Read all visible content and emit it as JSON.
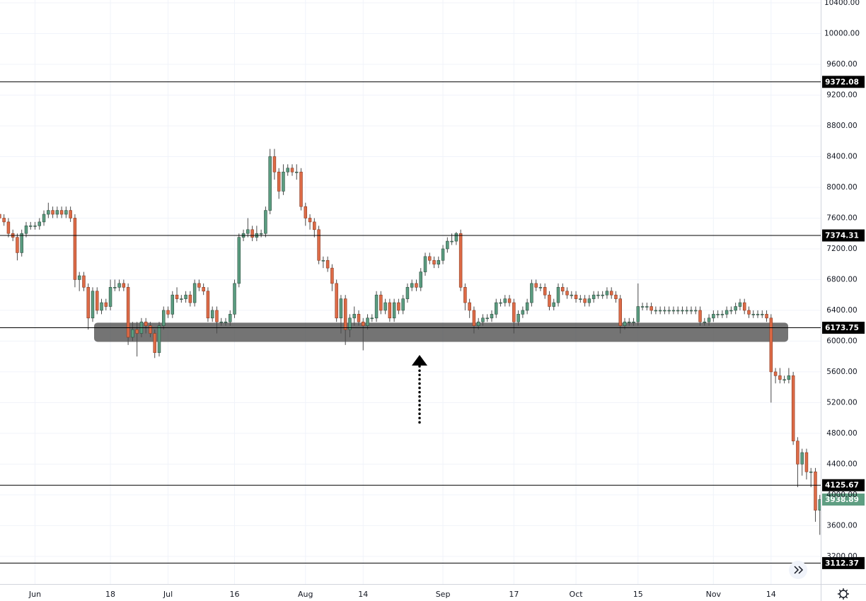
{
  "chart_data": {
    "type": "candlestick",
    "up_color": "#5a9c80",
    "down_color": "#dd6b47",
    "level_color": "#000000",
    "zone_color": "#4d4d4d",
    "last_color": "#5f9e82",
    "grid": true,
    "xlim": [
      0.1,
      185.2
    ],
    "ylim": [
      2840,
      10437
    ],
    "zone": [
      5990,
      6240
    ],
    "xticks": [
      {
        "value": 8,
        "label": "Jun"
      },
      {
        "value": 25,
        "label": "18"
      },
      {
        "value": 38,
        "label": "Jul"
      },
      {
        "value": 53,
        "label": "16"
      },
      {
        "value": 69,
        "label": "Aug"
      },
      {
        "value": 82,
        "label": "14"
      },
      {
        "value": 100,
        "label": "Sep"
      },
      {
        "value": 116,
        "label": "17"
      },
      {
        "value": 130,
        "label": "Oct"
      },
      {
        "value": 144,
        "label": "15"
      },
      {
        "value": 161,
        "label": "Nov"
      },
      {
        "value": 174,
        "label": "14"
      }
    ],
    "yticks": [
      {
        "value": 3200,
        "label": "3200.00"
      },
      {
        "value": 3600,
        "label": "3600.00"
      },
      {
        "value": 4000,
        "label": "4000.00"
      },
      {
        "value": 4400,
        "label": "4400.00"
      },
      {
        "value": 4800,
        "label": "4800.00"
      },
      {
        "value": 5200,
        "label": "5200.00"
      },
      {
        "value": 5600,
        "label": "5600.00"
      },
      {
        "value": 6000,
        "label": "6000.00"
      },
      {
        "value": 6400,
        "label": "6400.00"
      },
      {
        "value": 6800,
        "label": "6800.00"
      },
      {
        "value": 7200,
        "label": "7200.00"
      },
      {
        "value": 7600,
        "label": "7600.00"
      },
      {
        "value": 8000,
        "label": "8000.00"
      },
      {
        "value": 8400,
        "label": "8400.00"
      },
      {
        "value": 8800,
        "label": "8800.00"
      },
      {
        "value": 9200,
        "label": "9200.00"
      },
      {
        "value": 9600,
        "label": "9600.00"
      },
      {
        "value": 10000,
        "label": "10000.00"
      },
      {
        "value": 10400,
        "label": "10400.00"
      }
    ],
    "levels": [
      9372.08,
      7374.31,
      6173.75,
      4125.67,
      3112.37
    ],
    "open": [
      7650,
      7600,
      7550,
      7400,
      7350,
      7150,
      7400,
      7500,
      7500,
      7500,
      7550,
      7650,
      7700,
      7650,
      7700,
      7650,
      7700,
      7600,
      6800,
      6850,
      6700,
      6300,
      6650,
      6400,
      6500,
      6450,
      6700,
      6700,
      6750,
      6700,
      6050,
      6150,
      6100,
      6250,
      6200,
      6100,
      5850,
      6200,
      6400,
      6350,
      6600,
      6550,
      6550,
      6600,
      6500,
      6750,
      6700,
      6650,
      6300,
      6400,
      6250,
      6250,
      6250,
      6350,
      6750,
      7350,
      7400,
      7450,
      7350,
      7400,
      7400,
      7700,
      8400,
      8200,
      7950,
      8200,
      8250,
      8200,
      8200,
      7750,
      7600,
      7550,
      7450,
      7050,
      7050,
      6950,
      6750,
      6300,
      6550,
      6150,
      6300,
      6350,
      6250,
      6200,
      6300,
      6300,
      6600,
      6400,
      6500,
      6300,
      6500,
      6400,
      6550,
      6700,
      6750,
      6700,
      6900,
      7100,
      7050,
      7000,
      7050,
      7200,
      7300,
      7300,
      7400,
      6700,
      6500,
      6400,
      6200,
      6250,
      6300,
      6300,
      6350,
      6500,
      6500,
      6550,
      6500,
      6250,
      6350,
      6400,
      6500,
      6750,
      6700,
      6700,
      6600,
      6450,
      6500,
      6700,
      6650,
      6600,
      6600,
      6550,
      6550,
      6500,
      6550,
      6600,
      6600,
      6600,
      6650,
      6600,
      6550,
      6200,
      6250,
      6250,
      6250,
      6450,
      6450,
      6450,
      6400,
      6400,
      6400,
      6400,
      6400,
      6400,
      6400,
      6400,
      6400,
      6400,
      6400,
      6250,
      6250,
      6300,
      6350,
      6350,
      6350,
      6400,
      6400,
      6450,
      6500,
      6400,
      6350,
      6350,
      6350,
      6350,
      6300,
      5600,
      5550,
      5500,
      5500,
      5550,
      4700,
      4400,
      4550,
      4300,
      4300,
      3800
    ],
    "high": [
      7700,
      7650,
      7600,
      7450,
      7400,
      7450,
      7550,
      7550,
      7550,
      7600,
      7700,
      7800,
      7750,
      7750,
      7750,
      7750,
      7750,
      7650,
      6900,
      6900,
      6750,
      6700,
      6700,
      6550,
      6550,
      6800,
      6800,
      6800,
      6800,
      6750,
      6250,
      6250,
      6300,
      6300,
      6250,
      6150,
      6250,
      6450,
      6450,
      6650,
      6700,
      6600,
      6650,
      6650,
      6800,
      6800,
      6750,
      6700,
      6450,
      6450,
      6300,
      6300,
      6400,
      6800,
      7400,
      7450,
      7600,
      7500,
      7500,
      7450,
      7750,
      8500,
      8500,
      8250,
      8300,
      8300,
      8300,
      8300,
      8250,
      7800,
      7650,
      7600,
      7500,
      7100,
      7100,
      7000,
      6800,
      6600,
      6600,
      6350,
      6450,
      6400,
      6300,
      6350,
      6350,
      6650,
      6650,
      6550,
      6550,
      6550,
      6550,
      6600,
      6750,
      6800,
      6800,
      6950,
      7150,
      7150,
      7100,
      7100,
      7250,
      7350,
      7400,
      7420,
      7450,
      6750,
      6550,
      6450,
      6300,
      6350,
      6350,
      6400,
      6550,
      6550,
      6600,
      6600,
      6550,
      6400,
      6450,
      6550,
      6800,
      6800,
      6750,
      6750,
      6650,
      6550,
      6750,
      6750,
      6700,
      6650,
      6650,
      6600,
      6600,
      6600,
      6650,
      6650,
      6650,
      6700,
      6700,
      6650,
      6600,
      6300,
      6300,
      6300,
      6750,
      6500,
      6500,
      6500,
      6450,
      6450,
      6450,
      6450,
      6450,
      6450,
      6450,
      6450,
      6450,
      6450,
      6450,
      6300,
      6350,
      6400,
      6400,
      6400,
      6450,
      6450,
      6500,
      6550,
      6550,
      6450,
      6400,
      6400,
      6400,
      6400,
      6350,
      5650,
      5650,
      5550,
      5650,
      5600,
      4750,
      4600,
      4600,
      4350,
      4350,
      4000
    ],
    "low": [
      7550,
      7500,
      7350,
      7300,
      7050,
      7100,
      7350,
      7450,
      7450,
      7450,
      7500,
      7600,
      7600,
      7600,
      7600,
      7600,
      7550,
      6700,
      6650,
      6650,
      6150,
      6250,
      6350,
      6350,
      6400,
      6400,
      6650,
      6650,
      6650,
      5950,
      6000,
      5800,
      6050,
      6100,
      6050,
      5780,
      5800,
      6150,
      6300,
      6300,
      6500,
      6500,
      6500,
      6450,
      6450,
      6650,
      6600,
      6250,
      6250,
      6100,
      6200,
      6200,
      6200,
      6300,
      6700,
      7300,
      7350,
      7300,
      7300,
      7350,
      7350,
      7650,
      8100,
      7850,
      7900,
      8150,
      8150,
      8100,
      7700,
      7500,
      7450,
      7350,
      7000,
      6950,
      6900,
      6650,
      6250,
      6100,
      5950,
      6050,
      6200,
      6200,
      5880,
      6150,
      6250,
      6250,
      6350,
      6350,
      6250,
      6250,
      6350,
      6350,
      6500,
      6650,
      6650,
      6650,
      6850,
      7000,
      6950,
      6950,
      7000,
      7150,
      7250,
      7250,
      6650,
      6400,
      6300,
      6100,
      6150,
      6200,
      6250,
      6250,
      6300,
      6450,
      6450,
      6450,
      6100,
      6200,
      6300,
      6350,
      6450,
      6650,
      6650,
      6550,
      6400,
      6400,
      6450,
      6600,
      6550,
      6550,
      6500,
      6500,
      6450,
      6450,
      6500,
      6550,
      6550,
      6550,
      6550,
      6500,
      6100,
      6150,
      6200,
      6200,
      6200,
      6400,
      6400,
      6350,
      6350,
      6350,
      6350,
      6350,
      6350,
      6350,
      6350,
      6350,
      6350,
      6350,
      6200,
      6200,
      6200,
      6250,
      6300,
      6300,
      6300,
      6350,
      6350,
      6400,
      6350,
      6300,
      6300,
      6300,
      6300,
      6250,
      5200,
      5450,
      5450,
      5450,
      5450,
      4650,
      4100,
      4250,
      4200,
      4100,
      3650,
      3480
    ],
    "close": [
      7600,
      7550,
      7400,
      7350,
      7150,
      7400,
      7500,
      7500,
      7500,
      7550,
      7650,
      7700,
      7650,
      7700,
      7650,
      7700,
      7600,
      6800,
      6850,
      6700,
      6300,
      6650,
      6400,
      6500,
      6450,
      6700,
      6700,
      6750,
      6700,
      6050,
      6150,
      6100,
      6250,
      6200,
      6100,
      5850,
      6200,
      6400,
      6350,
      6600,
      6550,
      6550,
      6600,
      6500,
      6750,
      6700,
      6650,
      6300,
      6400,
      6250,
      6250,
      6250,
      6350,
      6750,
      7350,
      7400,
      7450,
      7350,
      7400,
      7400,
      7700,
      8400,
      8200,
      7950,
      8200,
      8250,
      8200,
      8200,
      7750,
      7600,
      7550,
      7450,
      7050,
      7050,
      6950,
      6750,
      6300,
      6550,
      6150,
      6300,
      6350,
      6250,
      6200,
      6300,
      6300,
      6600,
      6400,
      6500,
      6300,
      6500,
      6400,
      6550,
      6700,
      6750,
      6700,
      6900,
      7100,
      7050,
      7000,
      7050,
      7200,
      7300,
      7300,
      7400,
      6700,
      6500,
      6400,
      6200,
      6250,
      6300,
      6300,
      6350,
      6500,
      6500,
      6550,
      6500,
      6250,
      6350,
      6400,
      6500,
      6750,
      6700,
      6700,
      6600,
      6450,
      6500,
      6700,
      6650,
      6600,
      6600,
      6550,
      6550,
      6500,
      6550,
      6600,
      6600,
      6600,
      6650,
      6600,
      6550,
      6200,
      6250,
      6250,
      6250,
      6450,
      6450,
      6450,
      6400,
      6400,
      6400,
      6400,
      6400,
      6400,
      6400,
      6400,
      6400,
      6400,
      6400,
      6250,
      6250,
      6300,
      6350,
      6350,
      6350,
      6400,
      6400,
      6450,
      6500,
      6400,
      6350,
      6350,
      6350,
      6350,
      6300,
      5600,
      5550,
      5500,
      5500,
      5550,
      4700,
      4400,
      4550,
      4300,
      4300,
      3800,
      3938.89
    ]
  }
}
